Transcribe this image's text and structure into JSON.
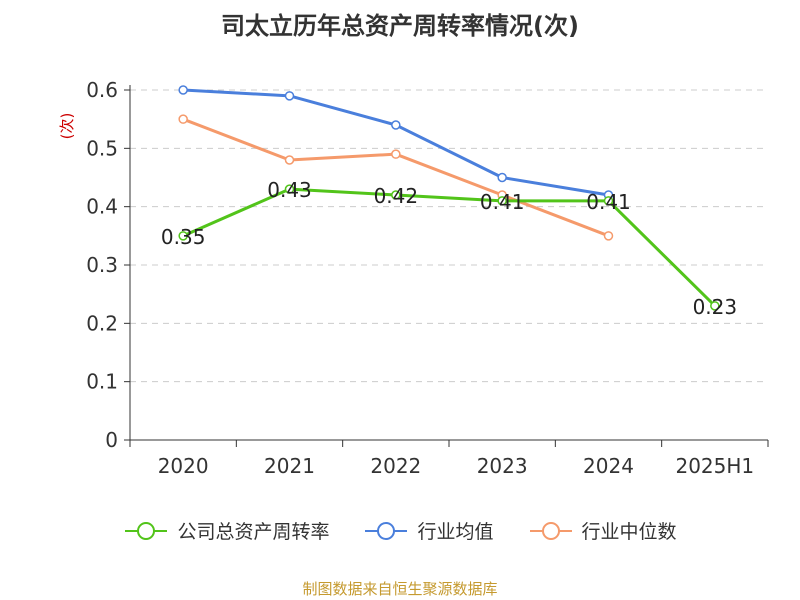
{
  "title": "司太立历年总资产周转率情况(次)",
  "source": "制图数据来自恒生聚源数据库",
  "chart_data": {
    "type": "line",
    "title": "司太立历年总资产周转率情况(次)",
    "ylabel": "(次)",
    "ylim": [
      0,
      0.6
    ],
    "yticks": [
      0,
      0.1,
      0.2,
      0.3,
      0.4,
      0.5,
      0.6
    ],
    "ytick_labels": [
      "0",
      "0.1",
      "0.2",
      "0.3",
      "0.4",
      "0.5",
      "0.6"
    ],
    "categories": [
      "2020",
      "2021",
      "2022",
      "2023",
      "2024",
      "2025H1"
    ],
    "grid": true,
    "legend_position": "bottom",
    "series": [
      {
        "name": "公司总资产周转率",
        "color": "#52c41a",
        "values": [
          0.35,
          0.43,
          0.42,
          0.41,
          0.41,
          0.23
        ],
        "labels": [
          "0.35",
          "0.43",
          "0.42",
          "0.41",
          "0.41",
          "0.23"
        ]
      },
      {
        "name": "行业均值",
        "color": "#4a7fdc",
        "values": [
          0.6,
          0.59,
          0.54,
          0.45,
          0.42,
          null
        ]
      },
      {
        "name": "行业中位数",
        "color": "#f59a6b",
        "values": [
          0.55,
          0.48,
          0.49,
          0.42,
          0.35,
          null
        ]
      }
    ]
  }
}
